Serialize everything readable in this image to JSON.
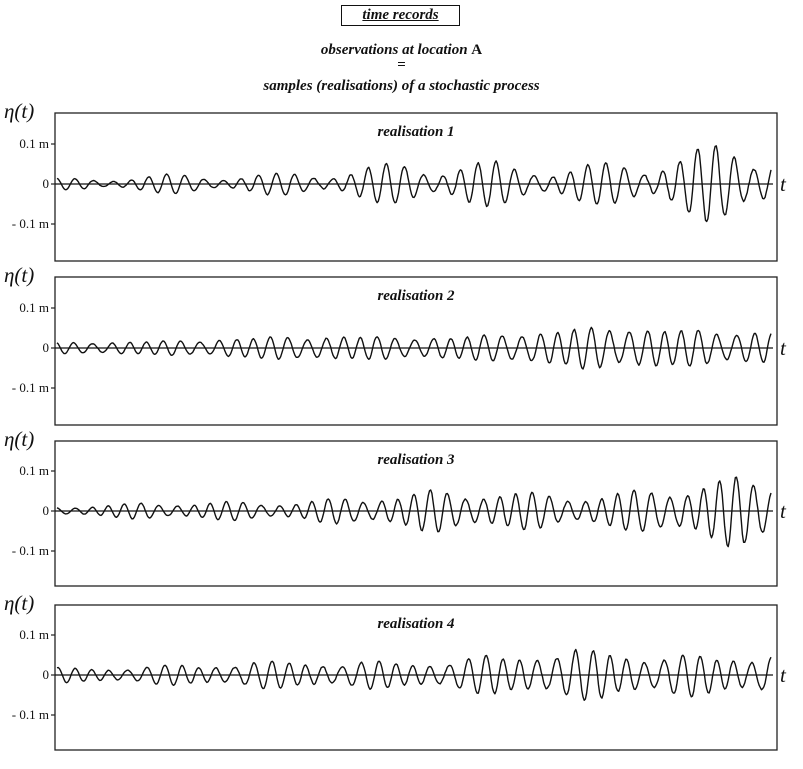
{
  "header": {
    "title": "time records",
    "observations": "observations at location",
    "location": "A",
    "equals": "=",
    "samples": "samples (realisations) of a stochastic process"
  },
  "chart_data": [
    {
      "type": "line",
      "title": "realisation 1",
      "ylabel": "η(t)",
      "xlabel": "t",
      "yticks": [
        "0.1 m",
        "0",
        "- 0.1 m"
      ],
      "ylim": [
        -0.17,
        0.17
      ],
      "envelope": {
        "start": 0.012,
        "end": 0.085
      },
      "dominant_cycles": 39,
      "series": [
        {
          "name": "",
          "values_note": ""
        }
      ],
      "seed": 11
    },
    {
      "type": "line",
      "title": "realisation 2",
      "ylabel": "η(t)",
      "xlabel": "t",
      "yticks": [
        "0.1 m",
        "0",
        "- 0.1 m"
      ],
      "ylim": [
        -0.17,
        0.17
      ],
      "envelope": {
        "start": 0.015,
        "end": 0.065
      },
      "dominant_cycles": 40,
      "seed": 23
    },
    {
      "type": "line",
      "title": "realisation 3",
      "ylabel": "η(t)",
      "xlabel": "t",
      "yticks": [
        "0.1 m",
        "0",
        "- 0.1 m"
      ],
      "ylim": [
        -0.17,
        0.17
      ],
      "envelope": {
        "start": 0.012,
        "end": 0.08
      },
      "dominant_cycles": 42,
      "seed": 37
    },
    {
      "type": "line",
      "title": "realisation 4",
      "ylabel": "η(t)",
      "xlabel": "t",
      "yticks": [
        "0.1 m",
        "0",
        "- 0.1 m"
      ],
      "ylim": [
        -0.17,
        0.17
      ],
      "envelope": {
        "start": 0.018,
        "end": 0.075
      },
      "dominant_cycles": 40,
      "seed": 53
    }
  ]
}
